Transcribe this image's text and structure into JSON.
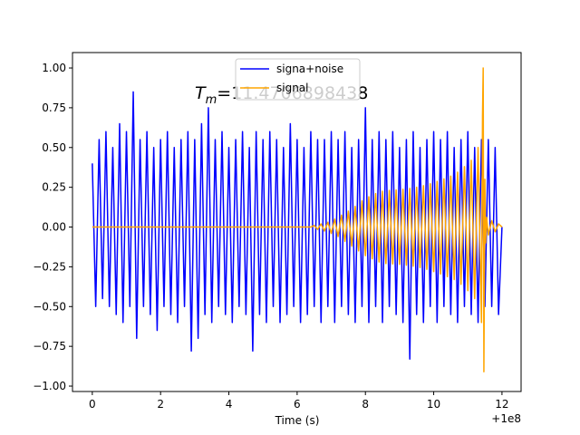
{
  "chart_data": {
    "type": "line",
    "annotation_symbol": "T",
    "annotation_subscript": "m",
    "annotation_text": "=11.4706898438",
    "xlabel": "Time (s)",
    "x_offset_label": "+1e8",
    "xlim": [
      -0.58,
      12.56
    ],
    "ylim": [
      -1.034,
      1.097
    ],
    "xticks": [
      0,
      2,
      4,
      6,
      8,
      10,
      12
    ],
    "yticks": [
      {
        "value": -1,
        "label": "−1.00"
      },
      {
        "value": -0.75,
        "label": "−0.75"
      },
      {
        "value": -0.5,
        "label": "−0.50"
      },
      {
        "value": -0.25,
        "label": "−0.25"
      },
      {
        "value": 0,
        "label": "0.00"
      },
      {
        "value": 0.25,
        "label": "0.25"
      },
      {
        "value": 0.5,
        "label": "0.50"
      },
      {
        "value": 0.75,
        "label": "0.75"
      },
      {
        "value": 1,
        "label": "1.00"
      }
    ],
    "grid": false,
    "legend_position": "upper center",
    "series": [
      {
        "name": "signa+noise",
        "color": "#0000ff",
        "x": [
          0,
          0.1,
          0.2,
          0.3,
          0.4,
          0.5,
          0.6,
          0.7,
          0.8,
          0.9,
          1,
          1.1,
          1.2,
          1.3,
          1.4,
          1.5,
          1.6,
          1.7,
          1.8,
          1.9,
          2,
          2.1,
          2.2,
          2.3,
          2.4,
          2.5,
          2.6,
          2.7,
          2.8,
          2.9,
          3,
          3.1,
          3.2,
          3.3,
          3.4,
          3.5,
          3.6,
          3.7,
          3.8,
          3.9,
          4,
          4.1,
          4.2,
          4.3,
          4.4,
          4.5,
          4.6,
          4.7,
          4.8,
          4.9,
          5,
          5.1,
          5.2,
          5.3,
          5.4,
          5.5,
          5.6,
          5.7,
          5.8,
          5.9,
          6,
          6.1,
          6.2,
          6.3,
          6.4,
          6.5,
          6.6,
          6.7,
          6.8,
          6.9,
          7,
          7.1,
          7.2,
          7.3,
          7.4,
          7.5,
          7.6,
          7.7,
          7.8,
          7.9,
          8,
          8.1,
          8.2,
          8.3,
          8.4,
          8.5,
          8.6,
          8.7,
          8.8,
          8.9,
          9,
          9.1,
          9.2,
          9.3,
          9.4,
          9.5,
          9.6,
          9.7,
          9.8,
          9.9,
          10,
          10.1,
          10.2,
          10.3,
          10.4,
          10.5,
          10.6,
          10.7,
          10.8,
          10.9,
          11,
          11.1,
          11.2,
          11.3,
          11.4,
          11.5,
          11.6,
          11.7,
          11.8,
          11.9,
          12
        ],
        "values": [
          0.4,
          -0.5,
          0.55,
          -0.45,
          0.6,
          -0.5,
          0.5,
          -0.55,
          0.65,
          -0.6,
          0.6,
          -0.5,
          0.85,
          -0.7,
          0.55,
          -0.5,
          0.6,
          -0.55,
          0.5,
          -0.65,
          0.55,
          -0.5,
          0.6,
          -0.55,
          0.5,
          -0.6,
          0.55,
          -0.5,
          0.6,
          -0.78,
          0.55,
          -0.7,
          0.65,
          -0.55,
          0.75,
          -0.6,
          0.55,
          -0.5,
          0.6,
          -0.55,
          0.5,
          -0.6,
          0.55,
          -0.5,
          0.6,
          -0.55,
          0.5,
          -0.78,
          0.6,
          -0.55,
          0.55,
          -0.6,
          0.6,
          -0.5,
          0.55,
          -0.6,
          0.5,
          -0.55,
          0.65,
          -0.5,
          0.55,
          -0.6,
          0.5,
          -0.55,
          0.6,
          -0.5,
          0.55,
          -0.6,
          0.55,
          -0.5,
          0.6,
          -0.6,
          0.55,
          -0.5,
          0.6,
          -0.55,
          0.5,
          -0.6,
          0.55,
          -0.5,
          0.75,
          -0.6,
          0.55,
          -0.5,
          0.6,
          -0.6,
          0.55,
          -0.5,
          0.6,
          -0.55,
          0.5,
          -0.6,
          0.55,
          -0.83,
          0.6,
          -0.55,
          0.5,
          -0.6,
          0.55,
          -0.5,
          0.6,
          -0.6,
          0.55,
          -0.5,
          0.6,
          -0.55,
          0.5,
          -0.6,
          0.55,
          -0.5,
          0.6,
          -0.55,
          0.5,
          -0.6,
          0.55,
          -0.5,
          0.55,
          -0.5,
          0.5,
          -0.55,
          0
        ]
      },
      {
        "name": "signal",
        "color": "#ffa500",
        "x": [
          0,
          6.4,
          6.5,
          6.6,
          6.7,
          6.8,
          6.9,
          7,
          7.1,
          7.2,
          7.3,
          7.4,
          7.5,
          7.6,
          7.7,
          7.8,
          7.9,
          8,
          8.1,
          8.2,
          8.3,
          8.4,
          8.5,
          8.6,
          8.7,
          8.8,
          8.9,
          9,
          9.1,
          9.2,
          9.3,
          9.4,
          9.5,
          9.6,
          9.7,
          9.8,
          9.9,
          10,
          10.1,
          10.2,
          10.3,
          10.4,
          10.5,
          10.6,
          10.7,
          10.8,
          10.9,
          11,
          11.1,
          11.2,
          11.3,
          11.4,
          11.43,
          11.45,
          11.47,
          11.5,
          11.52,
          11.55,
          11.6,
          11.7,
          11.8,
          11.9,
          12
        ],
        "values": [
          0,
          0,
          0.01,
          -0.015,
          0.02,
          -0.025,
          0.03,
          -0.04,
          0.05,
          -0.06,
          0.075,
          -0.09,
          0.1,
          -0.12,
          0.13,
          -0.15,
          0.165,
          -0.18,
          0.19,
          -0.2,
          0.21,
          -0.22,
          0.225,
          -0.23,
          0.23,
          -0.232,
          0.233,
          -0.235,
          0.237,
          -0.24,
          0.243,
          -0.246,
          0.25,
          -0.255,
          0.26,
          -0.266,
          0.272,
          -0.28,
          0.287,
          -0.295,
          0.303,
          -0.312,
          0.32,
          -0.33,
          0.345,
          -0.36,
          0.38,
          -0.4,
          0.42,
          -0.45,
          0.5,
          -0.6,
          0.7,
          1,
          -0.91,
          0.3,
          -0.1,
          0.06,
          -0.05,
          0.04,
          -0.03,
          0.02,
          0
        ]
      }
    ]
  }
}
